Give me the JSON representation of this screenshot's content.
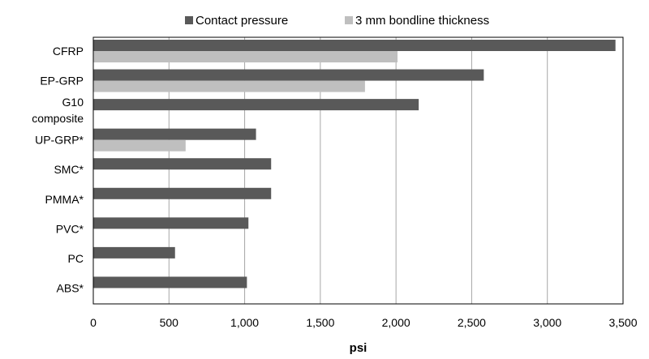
{
  "chart_data": {
    "type": "bar",
    "orientation": "horizontal",
    "title": "",
    "xlabel": "psi",
    "ylabel": "",
    "xlim": [
      0,
      3500
    ],
    "xticks": [
      0,
      500,
      1000,
      1500,
      2000,
      2500,
      3000,
      3500
    ],
    "xtick_labels": [
      "0",
      "500",
      "1,000",
      "1,500",
      "2,000",
      "2,500",
      "3,000",
      "3,500"
    ],
    "grid": "vertical",
    "legend_position": "top",
    "categories": [
      [
        "CFRP"
      ],
      [
        "EP-GRP"
      ],
      [
        "G10",
        "composite"
      ],
      [
        "UP-GRP*"
      ],
      [
        "SMC*"
      ],
      [
        "PMMA*"
      ],
      [
        "PVC*"
      ],
      [
        "PC"
      ],
      [
        "ABS*"
      ]
    ],
    "series": [
      {
        "name": "Contact pressure",
        "color": "#595959",
        "values": [
          3450,
          2580,
          2150,
          1075,
          1175,
          1175,
          1025,
          540,
          1015
        ]
      },
      {
        "name": "3 mm bondline thickness",
        "color": "#bfbfbf",
        "values": [
          2010,
          1795,
          null,
          610,
          null,
          null,
          null,
          null,
          null
        ]
      }
    ]
  }
}
